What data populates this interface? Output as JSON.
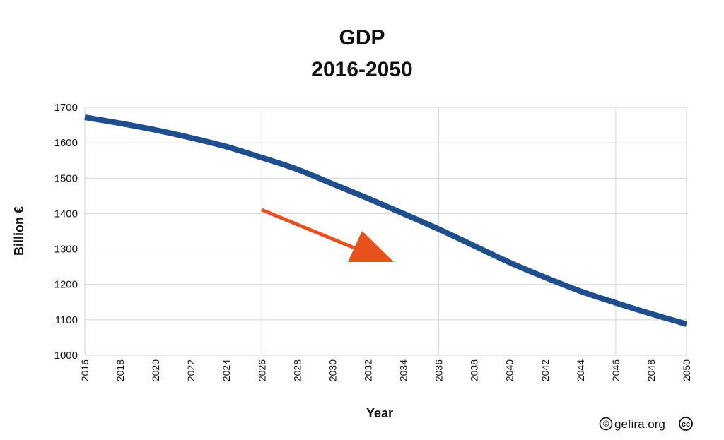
{
  "chart_data": {
    "type": "line",
    "title": [
      "GDP",
      "2016-2050"
    ],
    "xlabel": "Year",
    "ylabel": "Billion €",
    "xlim": [
      2016,
      2050
    ],
    "ylim": [
      1000,
      1700
    ],
    "x_ticks": [
      "2016",
      "2018",
      "2020",
      "2022",
      "2024",
      "2026",
      "2028",
      "2030",
      "2032",
      "2034",
      "2036",
      "2038",
      "2040",
      "2042",
      "2044",
      "2046",
      "2048",
      "2050"
    ],
    "y_ticks": [
      "1000",
      "1100",
      "1200",
      "1300",
      "1400",
      "1500",
      "1600",
      "1700"
    ],
    "grid": true,
    "series": [
      {
        "color": "#1f4e8c",
        "x": [
          2016,
          2018,
          2020,
          2022,
          2024,
          2026,
          2028,
          2030,
          2032,
          2034,
          2036,
          2038,
          2040,
          2042,
          2044,
          2046,
          2048,
          2050
        ],
        "y": [
          1672,
          1655,
          1636,
          1614,
          1589,
          1558,
          1525,
          1484,
          1443,
          1400,
          1356,
          1309,
          1262,
          1220,
          1181,
          1148,
          1117,
          1088
        ]
      }
    ],
    "annotation": {
      "type": "arrow",
      "color": "#e8501e",
      "direction": "down-right"
    }
  },
  "credit": {
    "copyright_symbol": "©",
    "text": "gefira.org",
    "license_badge": "cc"
  }
}
